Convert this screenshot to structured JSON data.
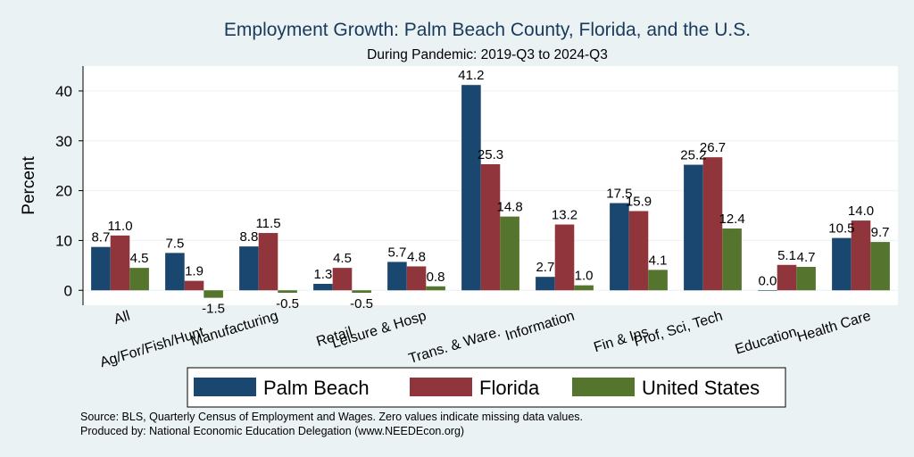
{
  "chart_data": {
    "type": "bar",
    "title": "Employment Growth: Palm Beach County, Florida, and the U.S.",
    "subtitle": "During Pandemic: 2019-Q3 to 2024-Q3",
    "ylabel": "Percent",
    "xlabel": "",
    "ylim": [
      -3,
      45
    ],
    "yticks": [
      0,
      10,
      20,
      30,
      40
    ],
    "grid": true,
    "legend_position": "bottom",
    "categories": [
      "All",
      "Ag/For/Fish/Hunt",
      "Manufacturing",
      "Retail",
      "Leisure & Hosp",
      "Trans. & Ware.",
      "Information",
      "Fin & Ins",
      "Prof, Sci, Tech",
      "Education",
      "Health Care"
    ],
    "series": [
      {
        "name": "Palm Beach",
        "color": "#1a476f",
        "values": [
          8.7,
          7.5,
          8.8,
          1.3,
          5.7,
          41.2,
          2.7,
          17.5,
          25.2,
          0.0,
          10.5
        ],
        "labels": [
          "8.7",
          "7.5",
          "8.8",
          "1.3",
          "5.7",
          "41.2",
          "2.7",
          "17.5",
          "25.2",
          "0.0",
          "10.5"
        ]
      },
      {
        "name": "Florida",
        "color": "#90353b",
        "values": [
          11.0,
          1.9,
          11.5,
          4.5,
          4.8,
          25.3,
          13.2,
          15.9,
          26.7,
          5.1,
          14.0
        ],
        "labels": [
          "11.0",
          "1.9",
          "11.5",
          "4.5",
          "4.8",
          "25.3",
          "13.2",
          "15.9",
          "26.7",
          "5.1",
          "14.0"
        ]
      },
      {
        "name": "United States",
        "color": "#55752f",
        "values": [
          4.5,
          -1.5,
          -0.5,
          -0.5,
          0.8,
          14.8,
          1.0,
          4.1,
          12.4,
          4.7,
          9.7
        ],
        "labels": [
          "4.5",
          "-1.5",
          "-0.5",
          "-0.5",
          "0.8",
          "14.8",
          "1.0",
          "4.1",
          "12.4",
          "4.7",
          "9.7"
        ]
      }
    ],
    "notes": [
      "Source: BLS, Quarterly Census of Employment and Wages. Zero values indicate missing data values.",
      "Produced by: National Economic Education Delegation (www.NEEDEcon.org)"
    ]
  }
}
